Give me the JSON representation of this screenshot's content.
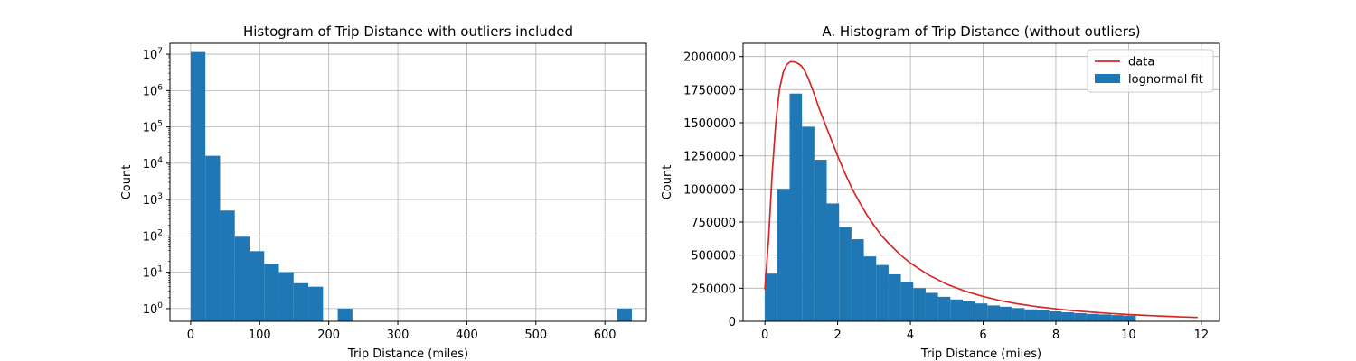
{
  "chart_data": [
    {
      "type": "bar",
      "title": "Histogram of Trip Distance with outliers included",
      "xlabel": "Trip Distance (miles)",
      "ylabel": "Count",
      "yscale": "log",
      "xlim": [
        -30,
        660
      ],
      "ylim_log10": [
        -0.35,
        7.3
      ],
      "xticks": [
        0,
        100,
        200,
        300,
        400,
        500,
        600
      ],
      "yticks": [
        {
          "exp": 0,
          "label_base": "10",
          "label_exp": "0"
        },
        {
          "exp": 1,
          "label_base": "10",
          "label_exp": "1"
        },
        {
          "exp": 2,
          "label_base": "10",
          "label_exp": "2"
        },
        {
          "exp": 3,
          "label_base": "10",
          "label_exp": "3"
        },
        {
          "exp": 4,
          "label_base": "10",
          "label_exp": "4"
        },
        {
          "exp": 5,
          "label_base": "10",
          "label_exp": "5"
        },
        {
          "exp": 6,
          "label_base": "10",
          "label_exp": "6"
        },
        {
          "exp": 7,
          "label_base": "10",
          "label_exp": "7"
        }
      ],
      "grid": true,
      "bin_width": 21.3,
      "bins": [
        {
          "x0": 0,
          "value": 11500000
        },
        {
          "x0": 21.3,
          "value": 16000
        },
        {
          "x0": 42.6,
          "value": 500
        },
        {
          "x0": 63.9,
          "value": 95
        },
        {
          "x0": 85.2,
          "value": 38
        },
        {
          "x0": 106.5,
          "value": 17
        },
        {
          "x0": 127.8,
          "value": 10
        },
        {
          "x0": 149.1,
          "value": 5
        },
        {
          "x0": 170.4,
          "value": 4
        },
        {
          "x0": 213,
          "value": 1
        },
        {
          "x0": 617.7,
          "value": 1
        }
      ],
      "bar_color": "#1f77b4"
    },
    {
      "type": "bar",
      "title": "A. Histogram of Trip Distance (without outliers)",
      "xlabel": "Trip Distance (miles)",
      "ylabel": "Count",
      "xlim": [
        -0.6,
        12.5
      ],
      "ylim": [
        0,
        2100000
      ],
      "xticks": [
        0,
        2,
        4,
        6,
        8,
        10,
        12
      ],
      "yticks": [
        0,
        250000,
        500000,
        750000,
        1000000,
        1250000,
        1500000,
        1750000,
        2000000
      ],
      "ytick_labels": [
        "0",
        "250000",
        "500000",
        "750000",
        "1000000",
        "1250000",
        "1500000",
        "1750000",
        "2000000"
      ],
      "grid": true,
      "bin_width": 0.34,
      "bins": [
        {
          "x0": 0.0,
          "value": 360000
        },
        {
          "x0": 0.34,
          "value": 1000000
        },
        {
          "x0": 0.68,
          "value": 1720000
        },
        {
          "x0": 1.02,
          "value": 1470000
        },
        {
          "x0": 1.36,
          "value": 1220000
        },
        {
          "x0": 1.7,
          "value": 890000
        },
        {
          "x0": 2.04,
          "value": 710000
        },
        {
          "x0": 2.38,
          "value": 620000
        },
        {
          "x0": 2.72,
          "value": 490000
        },
        {
          "x0": 3.06,
          "value": 425000
        },
        {
          "x0": 3.4,
          "value": 355000
        },
        {
          "x0": 3.74,
          "value": 300000
        },
        {
          "x0": 4.08,
          "value": 250000
        },
        {
          "x0": 4.42,
          "value": 215000
        },
        {
          "x0": 4.76,
          "value": 185000
        },
        {
          "x0": 5.1,
          "value": 165000
        },
        {
          "x0": 5.44,
          "value": 150000
        },
        {
          "x0": 5.78,
          "value": 135000
        },
        {
          "x0": 6.12,
          "value": 120000
        },
        {
          "x0": 6.46,
          "value": 110000
        },
        {
          "x0": 6.8,
          "value": 100000
        },
        {
          "x0": 7.14,
          "value": 90000
        },
        {
          "x0": 7.48,
          "value": 82000
        },
        {
          "x0": 7.82,
          "value": 75000
        },
        {
          "x0": 8.16,
          "value": 68000
        },
        {
          "x0": 8.5,
          "value": 62000
        },
        {
          "x0": 8.84,
          "value": 56000
        },
        {
          "x0": 9.18,
          "value": 52000
        },
        {
          "x0": 9.52,
          "value": 47000
        },
        {
          "x0": 9.86,
          "value": 43000
        }
      ],
      "bar_color": "#1f77b4",
      "line_series": {
        "color": "#d62728",
        "points": [
          [
            0.0,
            240000
          ],
          [
            0.1,
            620000
          ],
          [
            0.2,
            1120000
          ],
          [
            0.3,
            1500000
          ],
          [
            0.4,
            1750000
          ],
          [
            0.5,
            1880000
          ],
          [
            0.6,
            1940000
          ],
          [
            0.7,
            1960000
          ],
          [
            0.8,
            1960000
          ],
          [
            0.9,
            1950000
          ],
          [
            1.0,
            1930000
          ],
          [
            1.1,
            1890000
          ],
          [
            1.2,
            1830000
          ],
          [
            1.3,
            1760000
          ],
          [
            1.4,
            1680000
          ],
          [
            1.5,
            1600000
          ],
          [
            1.6,
            1530000
          ],
          [
            1.7,
            1460000
          ],
          [
            1.8,
            1390000
          ],
          [
            1.9,
            1320000
          ],
          [
            2.0,
            1250000
          ],
          [
            2.2,
            1120000
          ],
          [
            2.4,
            1000000
          ],
          [
            2.6,
            900000
          ],
          [
            2.8,
            805000
          ],
          [
            3.0,
            725000
          ],
          [
            3.2,
            650000
          ],
          [
            3.4,
            590000
          ],
          [
            3.6,
            535000
          ],
          [
            3.8,
            485000
          ],
          [
            4.0,
            440000
          ],
          [
            4.5,
            350000
          ],
          [
            5.0,
            280000
          ],
          [
            5.5,
            228000
          ],
          [
            6.0,
            188000
          ],
          [
            6.5,
            155000
          ],
          [
            7.0,
            130000
          ],
          [
            7.5,
            110000
          ],
          [
            8.0,
            94000
          ],
          [
            8.5,
            80000
          ],
          [
            9.0,
            69000
          ],
          [
            9.5,
            59000
          ],
          [
            10.0,
            51000
          ],
          [
            10.5,
            44000
          ],
          [
            11.0,
            38000
          ],
          [
            11.5,
            33000
          ],
          [
            11.9,
            29000
          ]
        ]
      },
      "legend": {
        "placement": "top-right",
        "entries": [
          {
            "label": "data",
            "kind": "line",
            "color": "#d62728"
          },
          {
            "label": "lognormal fit",
            "kind": "patch",
            "color": "#1f77b4"
          }
        ]
      }
    }
  ]
}
